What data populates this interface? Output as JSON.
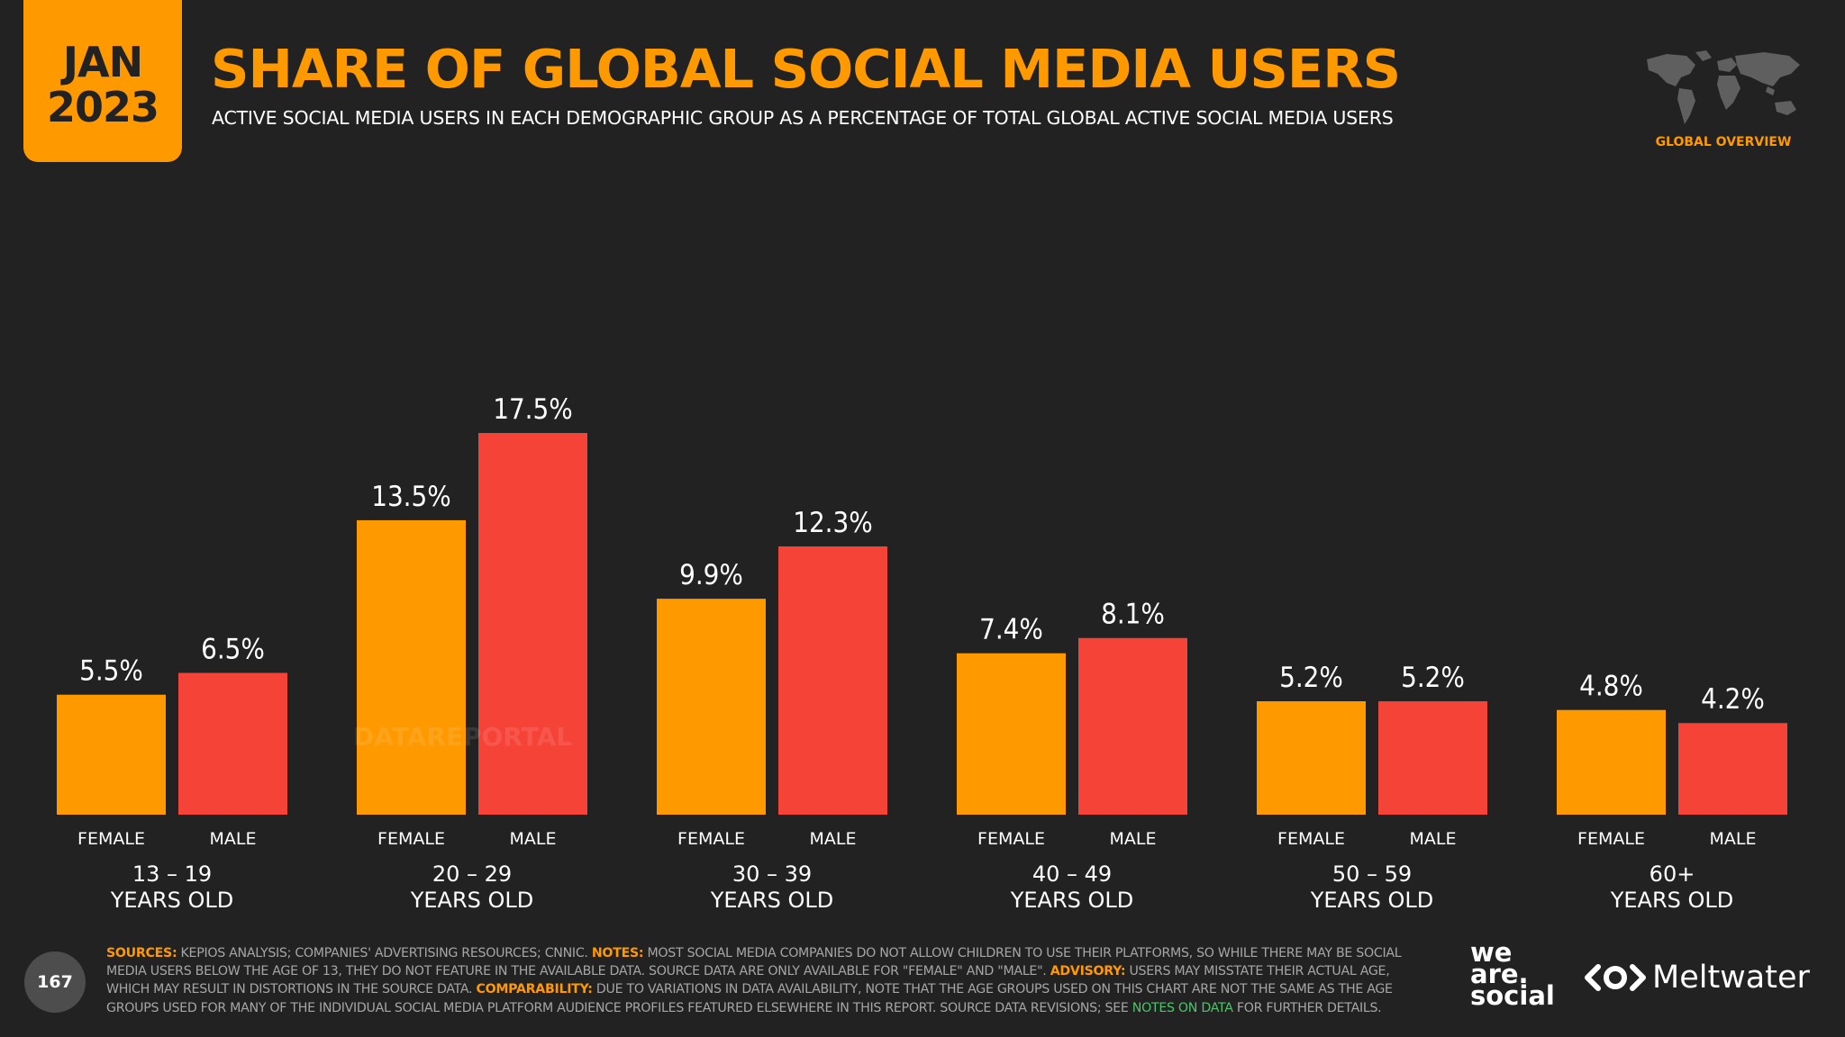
{
  "badge": {
    "month": "JAN",
    "year": "2023"
  },
  "header": {
    "title": "SHARE OF GLOBAL SOCIAL MEDIA USERS",
    "subtitle": "ACTIVE SOCIAL MEDIA USERS IN EACH DEMOGRAPHIC GROUP AS A PERCENTAGE OF TOTAL GLOBAL ACTIVE SOCIAL MEDIA USERS",
    "section": "GLOBAL OVERVIEW"
  },
  "colors": {
    "accent": "#ff9900",
    "female": "#ff9900",
    "male": "#f54337",
    "background": "#222222"
  },
  "chart_data": {
    "type": "bar",
    "title": "SHARE OF GLOBAL SOCIAL MEDIA USERS",
    "groups": [
      {
        "line1": "13 – 19",
        "line2": "YEARS OLD",
        "bars": [
          {
            "label": "FEMALE",
            "value": 5.5,
            "text": "5.5%"
          },
          {
            "label": "MALE",
            "value": 6.5,
            "text": "6.5%"
          }
        ]
      },
      {
        "line1": "20 – 29",
        "line2": "YEARS OLD",
        "bars": [
          {
            "label": "FEMALE",
            "value": 13.5,
            "text": "13.5%"
          },
          {
            "label": "MALE",
            "value": 17.5,
            "text": "17.5%"
          }
        ]
      },
      {
        "line1": "30 – 39",
        "line2": "YEARS OLD",
        "bars": [
          {
            "label": "FEMALE",
            "value": 9.9,
            "text": "9.9%"
          },
          {
            "label": "MALE",
            "value": 12.3,
            "text": "12.3%"
          }
        ]
      },
      {
        "line1": "40 – 49",
        "line2": "YEARS OLD",
        "bars": [
          {
            "label": "FEMALE",
            "value": 7.4,
            "text": "7.4%"
          },
          {
            "label": "MALE",
            "value": 8.1,
            "text": "8.1%"
          }
        ]
      },
      {
        "line1": "50 – 59",
        "line2": "YEARS OLD",
        "bars": [
          {
            "label": "FEMALE",
            "value": 5.2,
            "text": "5.2%"
          },
          {
            "label": "MALE",
            "value": 5.2,
            "text": "5.2%"
          }
        ]
      },
      {
        "line1": "60+",
        "line2": "YEARS OLD",
        "bars": [
          {
            "label": "FEMALE",
            "value": 4.8,
            "text": "4.8%"
          },
          {
            "label": "MALE",
            "value": 4.2,
            "text": "4.2%"
          }
        ]
      }
    ],
    "ylim": [
      0,
      17.5
    ]
  },
  "watermark": "DATAREPORTAL",
  "footer": {
    "page_number": "167",
    "sources_label": "SOURCES:",
    "sources_text": "KEPIOS ANALYSIS; COMPANIES' ADVERTISING RESOURCES; CNNIC.",
    "notes_label": "NOTES:",
    "notes_text": "MOST SOCIAL MEDIA COMPANIES DO NOT ALLOW CHILDREN TO USE THEIR PLATFORMS, SO WHILE THERE MAY BE SOCIAL MEDIA USERS BELOW THE AGE OF 13, THEY DO NOT FEATURE IN THE AVAILABLE DATA. SOURCE DATA ARE ONLY AVAILABLE FOR \"FEMALE\" AND \"MALE\".",
    "advisory_label": "ADVISORY:",
    "advisory_text": "USERS MAY MISSTATE THEIR ACTUAL AGE, WHICH MAY RESULT IN DISTORTIONS IN THE SOURCE DATA.",
    "comparability_label": "COMPARABILITY:",
    "comparability_text": "DUE TO VARIATIONS IN DATA AVAILABILITY, NOTE THAT THE AGE GROUPS USED ON THIS CHART ARE NOT THE SAME AS THE AGE GROUPS USED FOR MANY OF THE INDIVIDUAL SOCIAL MEDIA PLATFORM AUDIENCE PROFILES FEATURED ELSEWHERE IN THIS REPORT. SOURCE DATA REVISIONS; SEE",
    "notes_link": "NOTES ON DATA",
    "closing_text": "FOR FURTHER DETAILS."
  },
  "brands": {
    "was_line1": "we",
    "was_line2": "are.",
    "was_line3": "social",
    "meltwater": "Meltwater"
  }
}
